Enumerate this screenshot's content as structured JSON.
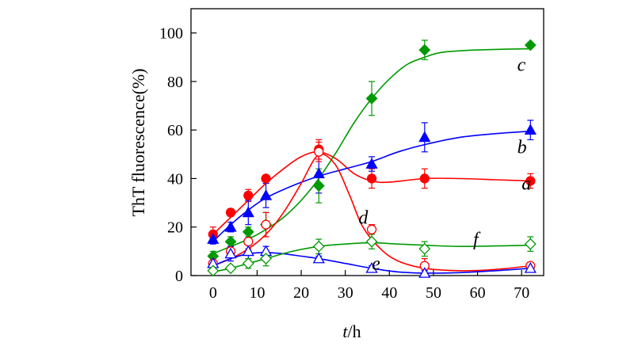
{
  "chart_data": {
    "type": "scatter",
    "xlabel_italic": "t",
    "xlabel_rest": "/h",
    "ylabel": "ThT fluorescence(%)",
    "xlim": [
      -5,
      75
    ],
    "ylim": [
      0,
      110
    ],
    "x_ticks": [
      0,
      10,
      20,
      30,
      40,
      50,
      60,
      70
    ],
    "y_ticks": [
      0,
      20,
      40,
      60,
      80,
      100
    ],
    "grid": false,
    "series": [
      {
        "name": "a",
        "color": "#ff0000",
        "marker": "circle",
        "filled": true,
        "points": [
          [
            0,
            17,
            3
          ],
          [
            4,
            26,
            1.5
          ],
          [
            8,
            33,
            2.5
          ],
          [
            12,
            40,
            1
          ],
          [
            24,
            52,
            4
          ],
          [
            36,
            40,
            4
          ],
          [
            48,
            40,
            4
          ],
          [
            72,
            39,
            3
          ]
        ],
        "curve": [
          [
            0,
            17
          ],
          [
            4,
            24
          ],
          [
            8,
            31
          ],
          [
            12,
            38
          ],
          [
            16,
            44
          ],
          [
            20,
            49
          ],
          [
            24,
            51
          ],
          [
            28,
            48
          ],
          [
            32,
            42
          ],
          [
            36,
            39
          ],
          [
            40,
            38.5
          ],
          [
            48,
            40
          ],
          [
            56,
            40
          ],
          [
            64,
            39.5
          ],
          [
            72,
            39
          ]
        ]
      },
      {
        "name": "b",
        "color": "#0000ff",
        "marker": "triangle",
        "filled": true,
        "points": [
          [
            0,
            15,
            2
          ],
          [
            4,
            20,
            2
          ],
          [
            8,
            26,
            5
          ],
          [
            12,
            33,
            5
          ],
          [
            24,
            42,
            8
          ],
          [
            36,
            46,
            3
          ],
          [
            48,
            57,
            6
          ],
          [
            72,
            60,
            4
          ]
        ],
        "curve": [
          [
            0,
            14
          ],
          [
            4,
            21
          ],
          [
            8,
            27
          ],
          [
            12,
            32
          ],
          [
            18,
            37
          ],
          [
            24,
            41
          ],
          [
            30,
            44
          ],
          [
            36,
            47
          ],
          [
            42,
            51
          ],
          [
            48,
            54
          ],
          [
            56,
            57
          ],
          [
            64,
            58.5
          ],
          [
            72,
            59.5
          ]
        ]
      },
      {
        "name": "c",
        "color": "#009900",
        "marker": "diamond",
        "filled": true,
        "points": [
          [
            0,
            8,
            2
          ],
          [
            4,
            14,
            2
          ],
          [
            8,
            18,
            2
          ],
          [
            12,
            21,
            5
          ],
          [
            24,
            37,
            7
          ],
          [
            36,
            73,
            7
          ],
          [
            48,
            93,
            4
          ],
          [
            72,
            95,
            1
          ]
        ],
        "curve": [
          [
            0,
            9
          ],
          [
            4,
            12
          ],
          [
            8,
            15
          ],
          [
            12,
            19
          ],
          [
            16,
            24
          ],
          [
            20,
            31
          ],
          [
            24,
            40
          ],
          [
            28,
            51
          ],
          [
            32,
            63
          ],
          [
            36,
            73
          ],
          [
            40,
            81
          ],
          [
            44,
            87
          ],
          [
            48,
            90
          ],
          [
            52,
            92
          ],
          [
            60,
            93
          ],
          [
            72,
            93.5
          ]
        ]
      },
      {
        "name": "d",
        "color": "#ff0000",
        "marker": "circle",
        "filled": false,
        "points": [
          [
            0,
            5,
            2
          ],
          [
            4,
            10,
            2
          ],
          [
            8,
            14,
            3
          ],
          [
            12,
            21,
            5
          ],
          [
            24,
            51,
            4
          ],
          [
            36,
            19,
            2
          ],
          [
            48,
            4,
            3
          ],
          [
            72,
            4,
            1
          ]
        ],
        "curve": [
          [
            0,
            4
          ],
          [
            4,
            7
          ],
          [
            8,
            11
          ],
          [
            12,
            17
          ],
          [
            16,
            26
          ],
          [
            20,
            38
          ],
          [
            23,
            48
          ],
          [
            25,
            50
          ],
          [
            28,
            45
          ],
          [
            31,
            33
          ],
          [
            34,
            20
          ],
          [
            38,
            11
          ],
          [
            42,
            6
          ],
          [
            48,
            3
          ],
          [
            56,
            2
          ],
          [
            64,
            2.5
          ],
          [
            72,
            4
          ]
        ]
      },
      {
        "name": "e",
        "color": "#0000ff",
        "marker": "triangle",
        "filled": false,
        "points": [
          [
            0,
            5,
            1
          ],
          [
            4,
            9,
            3
          ],
          [
            8,
            10,
            3
          ],
          [
            12,
            10,
            2
          ],
          [
            24,
            7,
            1
          ],
          [
            36,
            3,
            1
          ],
          [
            48,
            1,
            1
          ],
          [
            72,
            3,
            1
          ]
        ],
        "curve": [
          [
            0,
            4
          ],
          [
            4,
            7
          ],
          [
            8,
            9
          ],
          [
            12,
            9.5
          ],
          [
            16,
            9
          ],
          [
            20,
            8
          ],
          [
            24,
            7
          ],
          [
            30,
            5
          ],
          [
            36,
            3
          ],
          [
            42,
            1.5
          ],
          [
            48,
            1
          ],
          [
            56,
            1.2
          ],
          [
            64,
            2
          ],
          [
            72,
            3
          ]
        ]
      },
      {
        "name": "f",
        "color": "#009900",
        "marker": "diamond",
        "filled": false,
        "points": [
          [
            0,
            2,
            1
          ],
          [
            4,
            3,
            1
          ],
          [
            8,
            5,
            2
          ],
          [
            12,
            7,
            3
          ],
          [
            24,
            12,
            3
          ],
          [
            36,
            14,
            3
          ],
          [
            48,
            11,
            3
          ],
          [
            72,
            13,
            3
          ]
        ],
        "curve": [
          [
            0,
            1.5
          ],
          [
            4,
            3
          ],
          [
            8,
            5
          ],
          [
            12,
            7
          ],
          [
            18,
            10
          ],
          [
            24,
            12
          ],
          [
            30,
            13
          ],
          [
            36,
            13.5
          ],
          [
            42,
            13
          ],
          [
            48,
            12.5
          ],
          [
            56,
            12
          ],
          [
            64,
            12.2
          ],
          [
            72,
            12.5
          ]
        ]
      }
    ]
  }
}
